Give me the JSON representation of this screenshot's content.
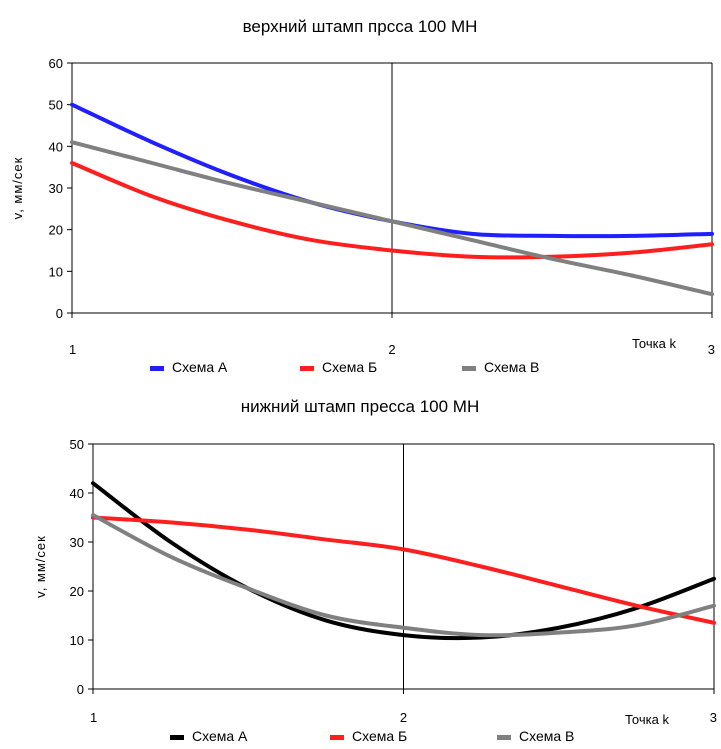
{
  "chart_data": [
    {
      "type": "line",
      "title": "верхний штамп прсса 100 МН",
      "xlabel": "Точка k",
      "ylabel": "v, мм/сек",
      "x": [
        1,
        1.25,
        1.5,
        1.75,
        2,
        2.25,
        2.5,
        2.75,
        3
      ],
      "xlim": [
        1,
        3
      ],
      "ylim": [
        0,
        60
      ],
      "yticks": [
        0,
        10,
        20,
        30,
        40,
        50,
        60
      ],
      "xticks": [
        "1",
        "2",
        "3"
      ],
      "grid": "vertical-at-2",
      "legend": "bottom",
      "series": [
        {
          "name": "Схема А",
          "color": "#1f1fff",
          "values": [
            50,
            41,
            33,
            26.5,
            22,
            19,
            18.5,
            18.5,
            19
          ]
        },
        {
          "name": "Схема Б",
          "color": "#ff1f1f",
          "values": [
            36,
            28,
            22,
            17.5,
            15,
            13.5,
            13.5,
            14.5,
            16.5
          ]
        },
        {
          "name": "Схема В",
          "color": "#808080",
          "values": [
            41,
            36,
            31,
            26.5,
            22,
            17.5,
            13,
            9,
            4.5
          ]
        }
      ]
    },
    {
      "type": "line",
      "title": "нижний штамп пресса 100 МН",
      "xlabel": "Точка k",
      "ylabel": "v, мм/сек",
      "x": [
        1,
        1.25,
        1.5,
        1.75,
        2,
        2.25,
        2.5,
        2.75,
        3
      ],
      "xlim": [
        1,
        3
      ],
      "ylim": [
        0,
        50
      ],
      "yticks": [
        0,
        10,
        20,
        30,
        40,
        50
      ],
      "xticks": [
        "1",
        "2",
        "3"
      ],
      "grid": "vertical-at-2",
      "legend": "bottom",
      "series": [
        {
          "name": "Схема А",
          "color": "#000000",
          "values": [
            42,
            30,
            20.5,
            14,
            11,
            10.5,
            12.5,
            16.5,
            22.5
          ]
        },
        {
          "name": "Схема Б",
          "color": "#ff1f1f",
          "values": [
            35,
            34,
            32.5,
            30.5,
            28.5,
            25,
            21,
            17,
            13.5
          ]
        },
        {
          "name": "Схема В",
          "color": "#808080",
          "values": [
            35.5,
            27,
            20.5,
            15,
            12.5,
            11,
            11.5,
            13,
            17
          ]
        }
      ]
    }
  ]
}
